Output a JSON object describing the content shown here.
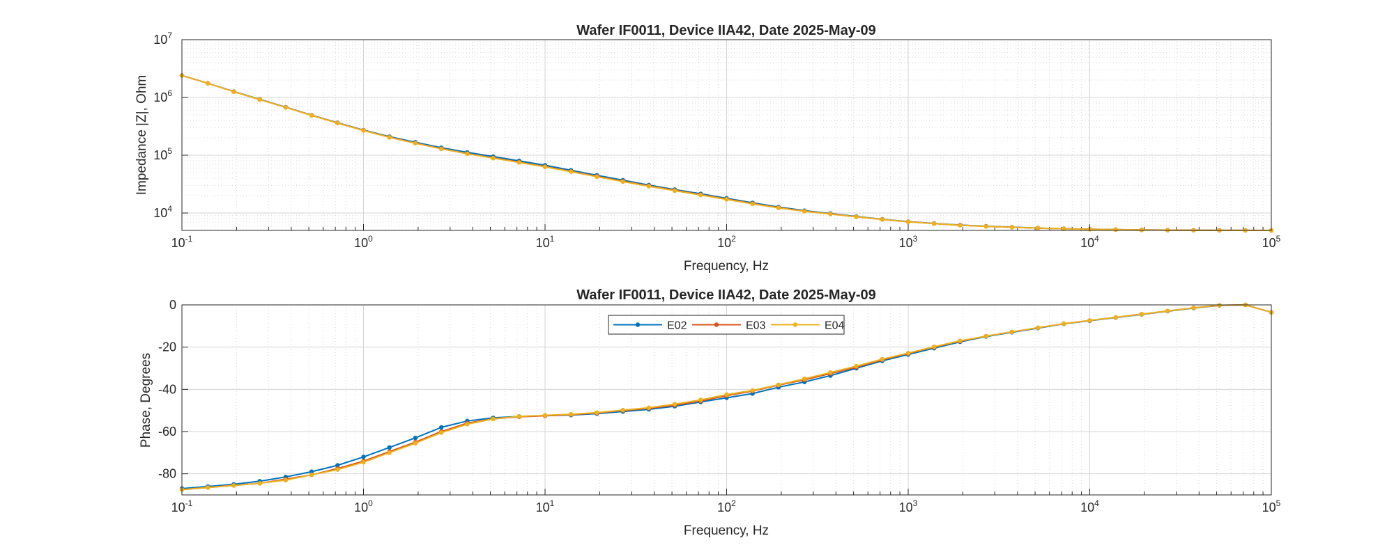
{
  "chart_data": [
    {
      "type": "line",
      "title": "Wafer IF0011, Device IIA42, Date 2025-May-09",
      "xlabel": "Frequency, Hz",
      "ylabel": "Impedance |Z|, Ohm",
      "xscale": "log",
      "yscale": "log",
      "xlim": [
        0.1,
        100000
      ],
      "ylim": [
        5000,
        10000000
      ],
      "x_ticks": [
        {
          "base": "10",
          "exp": "-1"
        },
        {
          "base": "10",
          "exp": "0"
        },
        {
          "base": "10",
          "exp": "1"
        },
        {
          "base": "10",
          "exp": "2"
        },
        {
          "base": "10",
          "exp": "3"
        },
        {
          "base": "10",
          "exp": "4"
        },
        {
          "base": "10",
          "exp": "5"
        }
      ],
      "y_ticks": [
        {
          "base": "10",
          "exp": "4",
          "value": 10000
        },
        {
          "base": "10",
          "exp": "5",
          "value": 100000
        },
        {
          "base": "10",
          "exp": "6",
          "value": 1000000
        },
        {
          "base": "10",
          "exp": "7",
          "value": 10000000
        }
      ],
      "grid": true,
      "legend": false,
      "x": [
        0.1,
        0.1389,
        0.1931,
        0.2683,
        0.3728,
        0.518,
        0.7197,
        1,
        1.389,
        1.931,
        2.683,
        3.728,
        5.18,
        7.197,
        10,
        13.89,
        19.31,
        26.83,
        37.28,
        51.8,
        71.97,
        100,
        138.9,
        193.1,
        268.3,
        372.8,
        518,
        719.7,
        1000,
        1389,
        1931,
        2683,
        3728,
        5180,
        7197,
        10000,
        13890,
        19310,
        26830,
        37280,
        51800,
        71970,
        100000
      ],
      "series": [
        {
          "name": "E02",
          "color": "#0072BD",
          "values": [
            2400000,
            1760000,
            1270000,
            930000,
            680000,
            495000,
            365000,
            272000,
            210000,
            168000,
            135000,
            112000,
            95000,
            80000,
            67000,
            55000,
            45000,
            37000,
            30500,
            25500,
            21500,
            18000,
            15000,
            12700,
            11000,
            9800,
            8700,
            7800,
            7100,
            6600,
            6200,
            5900,
            5700,
            5500,
            5350,
            5250,
            5170,
            5110,
            5070,
            5040,
            5020,
            5010,
            5000
          ]
        },
        {
          "name": "E03",
          "color": "#D95319",
          "values": [
            2400000,
            1760000,
            1260000,
            920000,
            675000,
            490000,
            362000,
            270000,
            205000,
            162000,
            130000,
            107000,
            90000,
            76000,
            63500,
            52500,
            43000,
            35500,
            29500,
            24700,
            20800,
            17400,
            14600,
            12400,
            10800,
            9650,
            8600,
            7750,
            7050,
            6550,
            6150,
            5870,
            5670,
            5480,
            5340,
            5240,
            5160,
            5100,
            5060,
            5030,
            5020,
            5010,
            5000
          ]
        },
        {
          "name": "E04",
          "color": "#EDB120",
          "values": [
            2400000,
            1760000,
            1260000,
            920000,
            672000,
            488000,
            360000,
            268000,
            204000,
            161000,
            129000,
            106000,
            89000,
            75000,
            63000,
            52000,
            42500,
            35000,
            29000,
            24300,
            20500,
            17200,
            14400,
            12300,
            10700,
            9600,
            8580,
            7730,
            7040,
            6540,
            6140,
            5860,
            5660,
            5470,
            5330,
            5230,
            5150,
            5090,
            5050,
            5030,
            5015,
            5005,
            5000
          ]
        }
      ]
    },
    {
      "type": "line",
      "title": "Wafer IF0011, Device IIA42, Date 2025-May-09",
      "xlabel": "Frequency, Hz",
      "ylabel": "Phase, Degrees",
      "xscale": "log",
      "yscale": "linear",
      "xlim": [
        0.1,
        100000
      ],
      "ylim": [
        -90,
        0
      ],
      "x_ticks": [
        {
          "base": "10",
          "exp": "-1"
        },
        {
          "base": "10",
          "exp": "0"
        },
        {
          "base": "10",
          "exp": "1"
        },
        {
          "base": "10",
          "exp": "2"
        },
        {
          "base": "10",
          "exp": "3"
        },
        {
          "base": "10",
          "exp": "4"
        },
        {
          "base": "10",
          "exp": "5"
        }
      ],
      "y_ticks": [
        {
          "label": "0",
          "value": 0
        },
        {
          "label": "-20",
          "value": -20
        },
        {
          "label": "-40",
          "value": -40
        },
        {
          "label": "-60",
          "value": -60
        },
        {
          "label": "-80",
          "value": -80
        }
      ],
      "grid": true,
      "legend": "top-left",
      "x": [
        0.1,
        0.1389,
        0.1931,
        0.2683,
        0.3728,
        0.518,
        0.7197,
        1,
        1.389,
        1.931,
        2.683,
        3.728,
        5.18,
        7.197,
        10,
        13.89,
        19.31,
        26.83,
        37.28,
        51.8,
        71.97,
        100,
        138.9,
        193.1,
        268.3,
        372.8,
        518,
        719.7,
        1000,
        1389,
        1931,
        2683,
        3728,
        5180,
        7197,
        10000,
        13890,
        19310,
        26830,
        37280,
        51800,
        71970,
        100000
      ],
      "series": [
        {
          "name": "E02",
          "color": "#0072BD",
          "values": [
            -87,
            -86,
            -85,
            -83.5,
            -81.5,
            -79,
            -76,
            -72,
            -67.5,
            -63,
            -58,
            -55,
            -53.5,
            -52.8,
            -52.5,
            -52.2,
            -51.5,
            -50.5,
            -49.5,
            -48,
            -46,
            -44,
            -42,
            -39,
            -36.5,
            -33.5,
            -30,
            -26.5,
            -23.5,
            -20.5,
            -17.5,
            -15,
            -13,
            -11,
            -9,
            -7.5,
            -6,
            -4.5,
            -3,
            -1.5,
            -0.3,
            0,
            -3.5
          ]
        },
        {
          "name": "E03",
          "color": "#D95319",
          "values": [
            -87.5,
            -86.5,
            -85.5,
            -84.5,
            -82.5,
            -80.5,
            -77.5,
            -74,
            -69.5,
            -65,
            -60,
            -56,
            -54,
            -53,
            -52.5,
            -52,
            -51.2,
            -50,
            -49,
            -47.5,
            -45.5,
            -43,
            -40.8,
            -38,
            -35.5,
            -32.5,
            -29.5,
            -26,
            -23,
            -20,
            -17.2,
            -14.8,
            -12.8,
            -10.8,
            -8.9,
            -7.4,
            -5.9,
            -4.4,
            -2.9,
            -1.4,
            -0.2,
            0,
            -3.5
          ]
        },
        {
          "name": "E04",
          "color": "#EDB120",
          "values": [
            -87.5,
            -86.5,
            -85.5,
            -84.5,
            -83,
            -80.5,
            -78,
            -74.5,
            -70,
            -65.5,
            -60.5,
            -56.5,
            -54,
            -52.8,
            -52.3,
            -51.8,
            -51,
            -49.8,
            -48.7,
            -47,
            -45,
            -42.5,
            -40.5,
            -37.8,
            -35,
            -32,
            -29,
            -25.7,
            -22.8,
            -19.8,
            -17,
            -14.8,
            -12.8,
            -10.8,
            -8.9,
            -7.4,
            -5.9,
            -4.4,
            -2.9,
            -1.4,
            -0.2,
            0,
            -3.5
          ]
        }
      ]
    }
  ]
}
